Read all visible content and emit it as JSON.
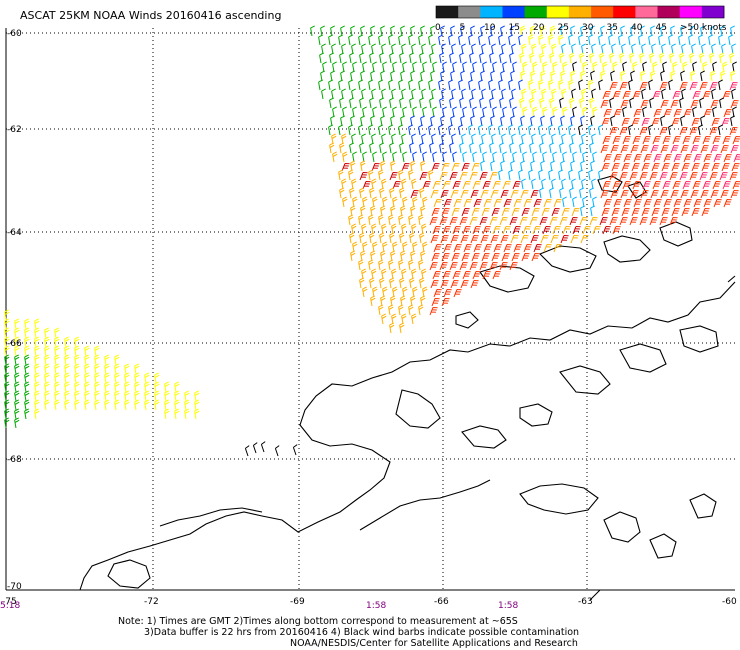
{
  "title": "ASCAT 25KM NOAA Winds 20160416 ascending",
  "colorbar": {
    "labels": [
      "0",
      "5",
      "10",
      "15",
      "20",
      "25",
      "30",
      "35",
      "40",
      "45",
      ">50 knots"
    ],
    "colors": [
      "#1a1a1a",
      "#8c8c8c",
      "#00b4ff",
      "#0040ff",
      "#00aa00",
      "#ffff00",
      "#ffb000",
      "#ff5a00",
      "#ff0000",
      "#ff6a9a",
      "#b0005a",
      "#ff00ff",
      "#8000d0"
    ]
  },
  "axes": {
    "lat_labels": [
      "-60",
      "-62",
      "-64",
      "-66",
      "-68",
      "-70"
    ],
    "lon_labels": [
      "-75",
      "-72",
      "-69",
      "-66",
      "-63",
      "-60"
    ]
  },
  "times": [
    "5:18",
    "1:58",
    "1:58"
  ],
  "notes": [
    "Note: 1) Times are GMT 2)Times along bottom correspond to measurement at ~65S",
    "3)Data buffer is 22 hrs from 20160416 4) Black wind barbs indicate possible contamination",
    "NOAA/NESDIS/Center for Satellite Applications and Research"
  ]
}
